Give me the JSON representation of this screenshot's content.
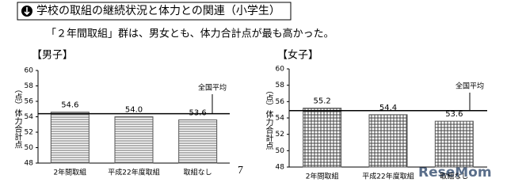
{
  "header": {
    "title": "学校の取組の継続状況と体力との関連（小学生）",
    "subtitle": "「２年間取組」群は、男女とも、体力合計点が最も高かった。"
  },
  "page_number": "7",
  "watermark": "ReseMom",
  "chart_data": [
    {
      "type": "bar",
      "title": "【男子】",
      "y_label": "（点）体力合計点",
      "categories": [
        "2年間取組",
        "平成22年度取組",
        "取組なし"
      ],
      "values": [
        54.6,
        54.0,
        53.6
      ],
      "value_labels": [
        "54.6",
        "54.0",
        "53.6"
      ],
      "pattern": "horizontal",
      "color": "#555555",
      "ylim": [
        48,
        60
      ],
      "yticks": [
        48,
        50,
        52,
        54,
        56,
        58,
        60
      ],
      "reference_line": {
        "label": "全国平均",
        "value": 54.4
      }
    },
    {
      "type": "bar",
      "title": "【女子】",
      "y_label": "（点）体力合計点",
      "categories": [
        "2年間取組",
        "平成22年度取組",
        "取組なし"
      ],
      "values": [
        55.2,
        54.4,
        53.6
      ],
      "value_labels": [
        "55.2",
        "54.4",
        "53.6"
      ],
      "pattern": "grid",
      "color": "#555555",
      "ylim": [
        48,
        60
      ],
      "yticks": [
        48,
        50,
        52,
        54,
        56,
        58,
        60
      ],
      "reference_line": {
        "label": "全国平均",
        "value": 54.9
      }
    }
  ]
}
